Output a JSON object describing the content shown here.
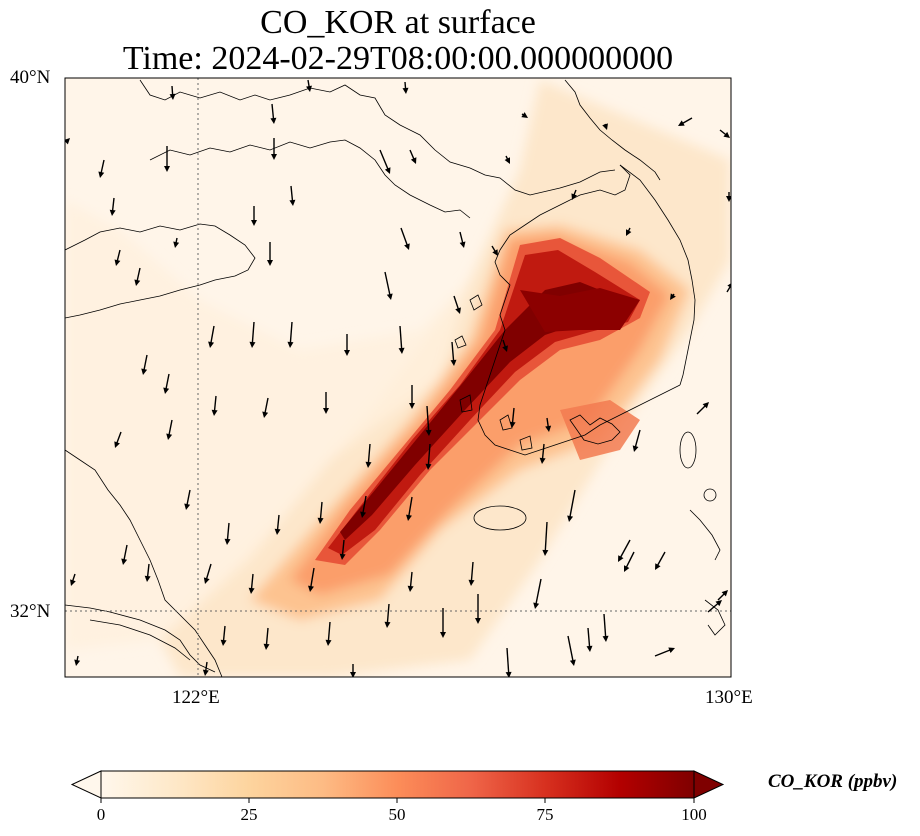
{
  "title": {
    "line1": "CO_KOR at surface",
    "line2": "Time: 2024-02-29T08:00:00.000000000"
  },
  "axes": {
    "lat_labels": [
      "40°N",
      "32°N"
    ],
    "lon_labels": [
      "122°E",
      "130°E"
    ],
    "lat_range": [
      31,
      40
    ],
    "lon_range": [
      120,
      130
    ],
    "gridlines": "dotted at 122°E and 32°N"
  },
  "colorbar": {
    "label": "CO_KOR (ppbv)",
    "ticks": [
      "0",
      "25",
      "50",
      "75",
      "100"
    ],
    "range": [
      0,
      100
    ],
    "extend": "both",
    "colormap": "OrRd",
    "colors": [
      "#fff7ec",
      "#fee8c8",
      "#fdd49e",
      "#fdbb84",
      "#fc8d59",
      "#ef6548",
      "#d7301f",
      "#b30000",
      "#7f0000"
    ]
  },
  "colors": {
    "coastline": "#000000",
    "wind_arrows": "#000000",
    "gridline": "#666666"
  }
}
